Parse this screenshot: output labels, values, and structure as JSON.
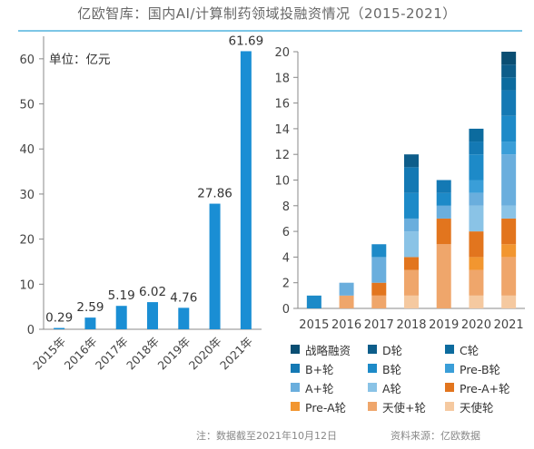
{
  "title": "亿欧智库：国内AI/计算制药领域投融资情况（2015-2021）",
  "footer": {
    "note": "注：数据截至2021年10月12日",
    "source": "资料来源：亿欧数据"
  },
  "chart_data": [
    {
      "type": "bar",
      "unit_label": "单位：亿元",
      "categories": [
        "2015年",
        "2016年",
        "2017年",
        "2018年",
        "2019年",
        "2020年",
        "2021年"
      ],
      "values": [
        0.29,
        2.59,
        5.19,
        6.02,
        4.76,
        27.86,
        61.69
      ],
      "value_labels": [
        "0.29",
        "2.59",
        "5.19",
        "6.02",
        "4.76",
        "27.86",
        "61.69"
      ],
      "ylim": [
        0,
        65
      ],
      "yticks": [
        0,
        10,
        20,
        30,
        40,
        50,
        60
      ],
      "color": "#1a8ed4",
      "grid": false
    },
    {
      "type": "bar",
      "stacked": true,
      "categories": [
        "2015",
        "2016",
        "2017",
        "2018",
        "2019",
        "2020",
        "2021"
      ],
      "ylim": [
        0,
        20
      ],
      "yticks": [
        0,
        2,
        4,
        6,
        8,
        10,
        12,
        14,
        16,
        18,
        20
      ],
      "legend_position": "bottom",
      "series": [
        {
          "name": "天使轮",
          "color": "#f5c9a0",
          "values": [
            0,
            0,
            0,
            1,
            0,
            1,
            1
          ]
        },
        {
          "name": "天使+轮",
          "color": "#efa66b",
          "values": [
            0,
            1,
            1,
            2,
            5,
            2,
            3
          ]
        },
        {
          "name": "Pre-A轮",
          "color": "#f29630",
          "values": [
            0,
            0,
            0,
            0,
            0,
            1,
            1
          ]
        },
        {
          "name": "Pre-A+轮",
          "color": "#e2751e",
          "values": [
            0,
            0,
            1,
            1,
            2,
            2,
            2
          ]
        },
        {
          "name": "A轮",
          "color": "#8ac3e6",
          "values": [
            0,
            0,
            0,
            2,
            0,
            2,
            1
          ]
        },
        {
          "name": "A+轮",
          "color": "#6aaedd",
          "values": [
            0,
            1,
            2,
            1,
            1,
            1,
            4
          ]
        },
        {
          "name": "Pre-B轮",
          "color": "#3a9ed8",
          "values": [
            0,
            0,
            0,
            0,
            0,
            1,
            1
          ]
        },
        {
          "name": "B轮",
          "color": "#1d8ac8",
          "values": [
            1,
            0,
            1,
            2,
            1,
            2,
            2
          ]
        },
        {
          "name": "B+轮",
          "color": "#1479b4",
          "values": [
            0,
            0,
            0,
            2,
            1,
            1,
            2
          ]
        },
        {
          "name": "C轮",
          "color": "#0c6b9e",
          "values": [
            0,
            0,
            0,
            0,
            0,
            1,
            1
          ]
        },
        {
          "name": "D轮",
          "color": "#0d5d8a",
          "values": [
            0,
            0,
            0,
            1,
            0,
            0,
            1
          ]
        },
        {
          "name": "战略融资",
          "color": "#0a4e73",
          "values": [
            0,
            0,
            0,
            0,
            0,
            0,
            1
          ]
        }
      ]
    }
  ]
}
